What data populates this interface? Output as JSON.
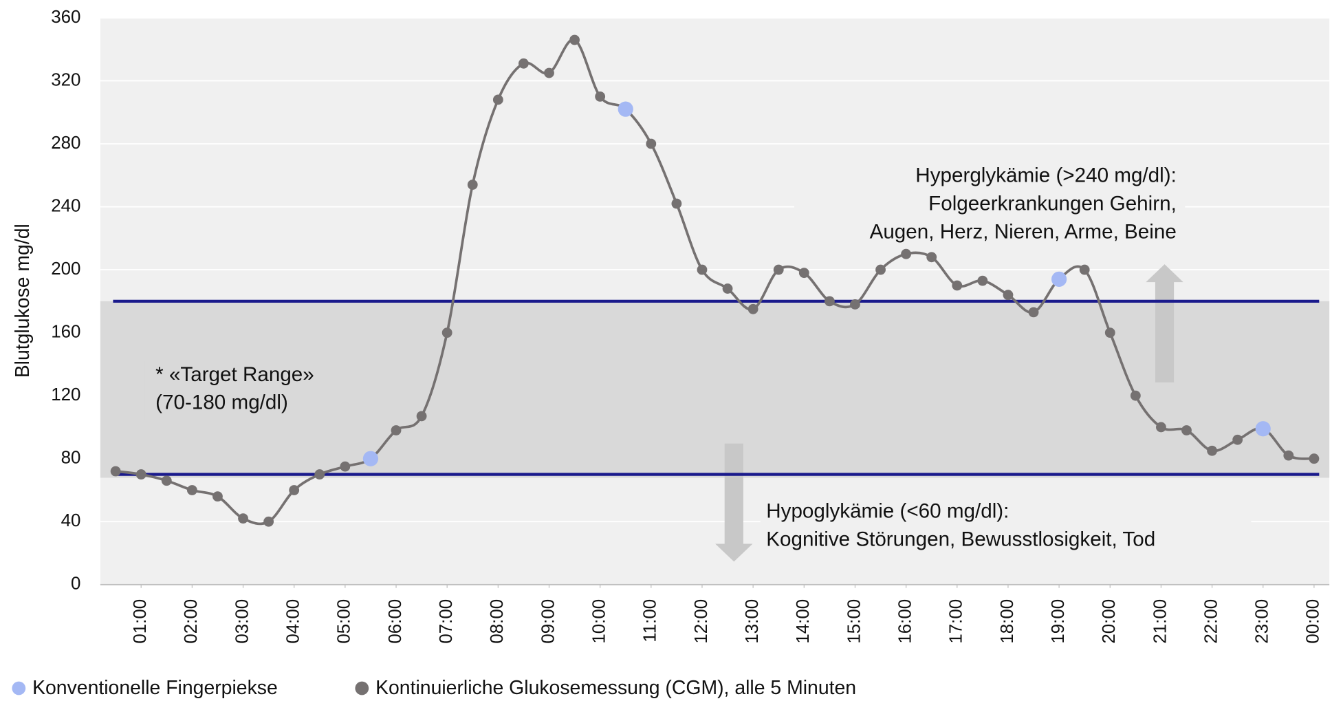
{
  "chart_data": {
    "type": "line",
    "ylabel": "Blutglukose mg/dl",
    "xlim": [
      0.2,
      24.3
    ],
    "ylim": [
      0,
      360
    ],
    "yticks": [
      0,
      40,
      80,
      120,
      160,
      200,
      240,
      280,
      320,
      360
    ],
    "xticks": [
      {
        "value": 1,
        "label": "01:00"
      },
      {
        "value": 2,
        "label": "02:00"
      },
      {
        "value": 3,
        "label": "03:00"
      },
      {
        "value": 4,
        "label": "04:00"
      },
      {
        "value": 5,
        "label": "05:00"
      },
      {
        "value": 6,
        "label": "06:00"
      },
      {
        "value": 7,
        "label": "07:00"
      },
      {
        "value": 8,
        "label": "08:00"
      },
      {
        "value": 9,
        "label": "09:00"
      },
      {
        "value": 10,
        "label": "10:00"
      },
      {
        "value": 11,
        "label": "11:00"
      },
      {
        "value": 12,
        "label": "12:00"
      },
      {
        "value": 13,
        "label": "13:00"
      },
      {
        "value": 14,
        "label": "14:00"
      },
      {
        "value": 15,
        "label": "15:00"
      },
      {
        "value": 16,
        "label": "16:00"
      },
      {
        "value": 17,
        "label": "17:00"
      },
      {
        "value": 18,
        "label": "18:00"
      },
      {
        "value": 19,
        "label": "19:00"
      },
      {
        "value": 20,
        "label": "20:00"
      },
      {
        "value": 21,
        "label": "21:00"
      },
      {
        "value": 22,
        "label": "22:00"
      },
      {
        "value": 23,
        "label": "23:00"
      },
      {
        "value": 24,
        "label": "00:00"
      }
    ],
    "grid": true,
    "target_range": [
      70,
      180
    ],
    "target_color": "#1a1a8c",
    "series": [
      {
        "name": "Konventionelle Fingerpiekse",
        "color": "#a4b8f4",
        "markers_only": true,
        "x": [
          5.5,
          10.5,
          19,
          23
        ],
        "values": [
          80,
          302,
          194,
          99
        ]
      },
      {
        "name": "Kontinuierliche Glukosemessung (CGM), alle 5 Minuten",
        "color": "#757171",
        "x": [
          0.5,
          1,
          1.5,
          2,
          2.5,
          3,
          3.5,
          4,
          4.5,
          5,
          5.5,
          6,
          6.5,
          7,
          7.5,
          8,
          8.5,
          9,
          9.5,
          10,
          10.5,
          11,
          11.5,
          12,
          12.5,
          13,
          13.5,
          14,
          14.5,
          15,
          15.5,
          16,
          16.5,
          17,
          17.5,
          18,
          18.5,
          19,
          19.5,
          20,
          20.5,
          21,
          21.5,
          22,
          22.5,
          23,
          23.5,
          24
        ],
        "values": [
          72,
          70,
          66,
          60,
          56,
          42,
          40,
          60,
          70,
          75,
          80,
          98,
          107,
          160,
          254,
          308,
          331,
          325,
          346,
          310,
          302,
          280,
          242,
          200,
          188,
          175,
          200,
          198,
          180,
          178,
          200,
          210,
          208,
          190,
          193,
          184,
          173,
          194,
          200,
          160,
          120,
          100,
          98,
          85,
          92,
          99,
          82,
          80
        ]
      }
    ],
    "annotations": {
      "target": [
        "* «Target Range»",
        "(70-180 mg/dl)"
      ],
      "hyper": [
        "Hyperglykämie (>240 mg/dl):",
        "Folgeerkrankungen Gehirn,",
        "Augen, Herz, Nieren, Arme, Beine"
      ],
      "hypo": [
        "Hypoglykämie (<60 mg/dl):",
        "Kognitive Störungen, Bewusstlosigkeit, Tod"
      ]
    }
  }
}
